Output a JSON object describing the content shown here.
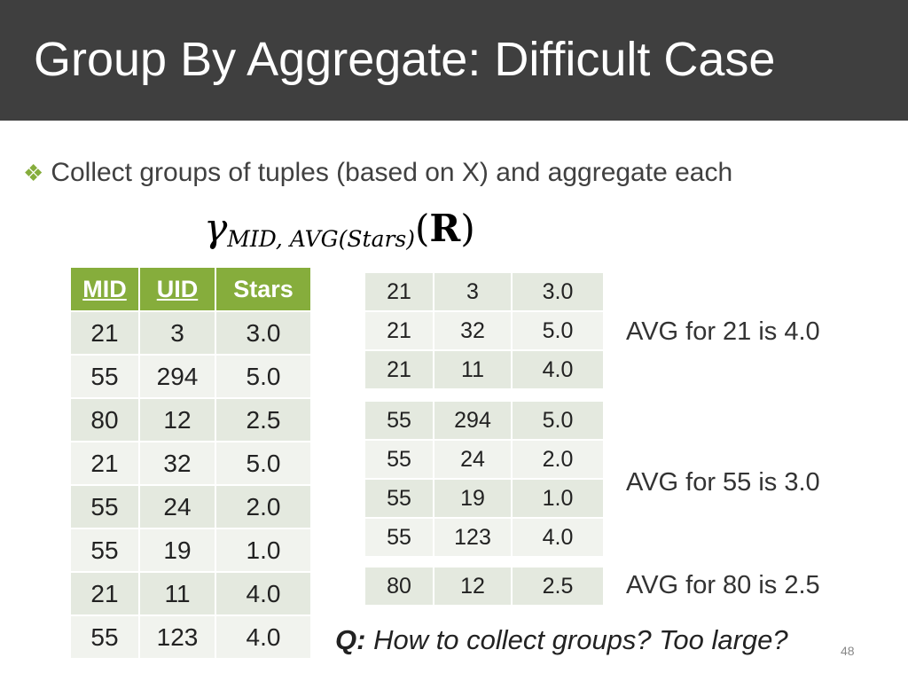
{
  "title": "Group By Aggregate: Difficult Case",
  "bullet": {
    "icon": "diamond-bullet-icon",
    "text": "Collect groups of tuples (based on X) and aggregate each"
  },
  "formula": {
    "gamma": "γ",
    "subscript": "MID, AVG(Stars)",
    "open_paren": "(",
    "relation": "R",
    "close_paren": ")"
  },
  "main_table": {
    "headers": [
      "MID",
      "UID",
      "Stars"
    ],
    "rows": [
      [
        "21",
        "3",
        "3.0"
      ],
      [
        "55",
        "294",
        "5.0"
      ],
      [
        "80",
        "12",
        "2.5"
      ],
      [
        "21",
        "32",
        "5.0"
      ],
      [
        "55",
        "24",
        "2.0"
      ],
      [
        "55",
        "19",
        "1.0"
      ],
      [
        "21",
        "11",
        "4.0"
      ],
      [
        "55",
        "123",
        "4.0"
      ]
    ]
  },
  "groups": [
    {
      "rows": [
        [
          "21",
          "3",
          "3.0"
        ],
        [
          "21",
          "32",
          "5.0"
        ],
        [
          "21",
          "11",
          "4.0"
        ]
      ],
      "avg_label": "AVG for 21 is 4.0"
    },
    {
      "rows": [
        [
          "55",
          "294",
          "5.0"
        ],
        [
          "55",
          "24",
          "2.0"
        ],
        [
          "55",
          "19",
          "1.0"
        ],
        [
          "55",
          "123",
          "4.0"
        ]
      ],
      "avg_label": "AVG for 55 is 3.0"
    },
    {
      "rows": [
        [
          "80",
          "12",
          "2.5"
        ]
      ],
      "avg_label": "AVG for 80 is 2.5"
    }
  ],
  "question": {
    "label": "Q:",
    "text": "How to collect groups? Too large?"
  },
  "page_number": "48",
  "colors": {
    "title_bg": "#3f3f3f",
    "accent_green": "#86ad3c",
    "row_dark": "#e4e9df",
    "row_light": "#f1f3ee"
  }
}
